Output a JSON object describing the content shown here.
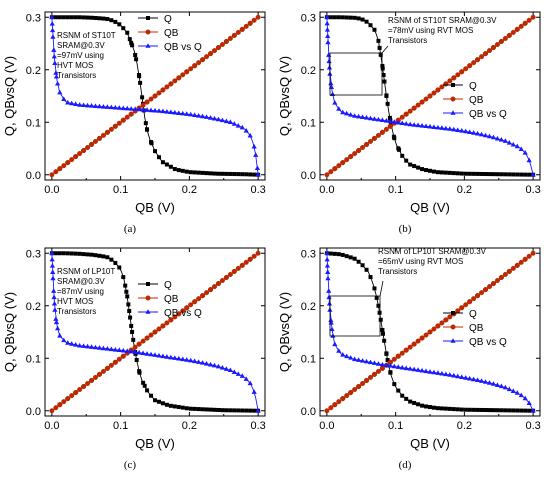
{
  "chart_data": [
    {
      "type": "line",
      "panel_label": "(a)",
      "xlabel": "QB (V)",
      "ylabel": "Q, QBvsQ (V)",
      "xlim": [
        -0.01,
        0.31
      ],
      "ylim": [
        -0.01,
        0.31
      ],
      "xticks": [
        "0.0",
        "0.1",
        "0.2",
        "0.3"
      ],
      "yticks": [
        "0.0",
        "0.1",
        "0.2",
        "0.3"
      ],
      "legend_position": "top-right",
      "annotation": [
        "RSNM of ST10T",
        "SRAM@0.3V",
        "=97mV using",
        "HVT MOS",
        "Transistors"
      ],
      "series": [
        {
          "name": "Q",
          "color": "#000000",
          "marker": "square",
          "x": [
            0.0,
            0.02,
            0.04,
            0.06,
            0.08,
            0.09,
            0.1,
            0.11,
            0.12,
            0.125,
            0.13,
            0.135,
            0.14,
            0.15,
            0.16,
            0.18,
            0.2,
            0.24,
            0.28,
            0.3
          ],
          "y": [
            0.3,
            0.3,
            0.3,
            0.299,
            0.297,
            0.293,
            0.285,
            0.27,
            0.235,
            0.205,
            0.16,
            0.11,
            0.075,
            0.045,
            0.025,
            0.01,
            0.005,
            0.002,
            0.001,
            0.0
          ]
        },
        {
          "name": "QB",
          "color": "#cc2200",
          "marker": "circle",
          "x": [
            0.0,
            0.3
          ],
          "y": [
            0.0,
            0.3
          ]
        },
        {
          "name": "QB vs Q",
          "color": "#1a1aff",
          "marker": "triangle",
          "x": [
            0.0,
            0.002,
            0.005,
            0.01,
            0.02,
            0.04,
            0.06,
            0.08,
            0.1,
            0.12,
            0.14,
            0.16,
            0.18,
            0.2,
            0.22,
            0.24,
            0.26,
            0.28,
            0.29,
            0.295,
            0.298,
            0.3
          ],
          "y": [
            0.3,
            0.25,
            0.2,
            0.16,
            0.138,
            0.133,
            0.131,
            0.129,
            0.127,
            0.125,
            0.123,
            0.121,
            0.118,
            0.115,
            0.111,
            0.106,
            0.1,
            0.088,
            0.072,
            0.05,
            0.025,
            0.0
          ]
        }
      ]
    },
    {
      "type": "line",
      "panel_label": "(b)",
      "xlabel": "QB (V)",
      "ylabel": "Q, QBvsQ (V)",
      "xlim": [
        -0.01,
        0.31
      ],
      "ylim": [
        -0.01,
        0.31
      ],
      "xticks": [
        "0.0",
        "0.1",
        "0.2",
        "0.3"
      ],
      "yticks": [
        "0.0",
        "0.1",
        "0.2",
        "0.3"
      ],
      "legend_position": "center-right",
      "annotation": [
        "RSNM of ST10T SRAM@0.3V",
        "=78mV using RVT MOS",
        "Transistors"
      ],
      "series": [
        {
          "name": "Q",
          "color": "#000000",
          "marker": "square",
          "x": [
            0.0,
            0.02,
            0.04,
            0.05,
            0.06,
            0.07,
            0.075,
            0.08,
            0.085,
            0.09,
            0.095,
            0.1,
            0.11,
            0.12,
            0.14,
            0.16,
            0.2,
            0.25,
            0.3
          ],
          "y": [
            0.3,
            0.3,
            0.299,
            0.297,
            0.29,
            0.275,
            0.255,
            0.215,
            0.165,
            0.12,
            0.085,
            0.06,
            0.035,
            0.02,
            0.01,
            0.005,
            0.002,
            0.001,
            0.0
          ]
        },
        {
          "name": "QB",
          "color": "#cc2200",
          "marker": "circle",
          "x": [
            0.0,
            0.3
          ],
          "y": [
            0.0,
            0.3
          ]
        },
        {
          "name": "QB vs Q",
          "color": "#1a1aff",
          "marker": "triangle",
          "x": [
            0.0,
            0.002,
            0.005,
            0.01,
            0.02,
            0.04,
            0.06,
            0.08,
            0.1,
            0.12,
            0.14,
            0.16,
            0.18,
            0.2,
            0.22,
            0.24,
            0.26,
            0.28,
            0.29,
            0.295,
            0.298,
            0.3
          ],
          "y": [
            0.3,
            0.24,
            0.18,
            0.14,
            0.12,
            0.112,
            0.108,
            0.104,
            0.1,
            0.096,
            0.093,
            0.09,
            0.087,
            0.083,
            0.078,
            0.072,
            0.064,
            0.052,
            0.04,
            0.025,
            0.012,
            0.0
          ]
        }
      ]
    },
    {
      "type": "line",
      "panel_label": "(c)",
      "xlabel": "QB (V)",
      "ylabel": "Q, QBvsQ (V)",
      "xlim": [
        -0.01,
        0.31
      ],
      "ylim": [
        -0.01,
        0.31
      ],
      "xticks": [
        "0.0",
        "0.1",
        "0.2",
        "0.3"
      ],
      "yticks": [
        "0.0",
        "0.1",
        "0.2",
        "0.3"
      ],
      "legend_position": "top-right",
      "annotation": [
        "RSNM of LP10T",
        "SRAM@0.3V",
        "=87mV using",
        "HVT MOS",
        "Transistors"
      ],
      "series": [
        {
          "name": "Q",
          "color": "#000000",
          "marker": "square",
          "x": [
            0.0,
            0.02,
            0.04,
            0.06,
            0.08,
            0.09,
            0.1,
            0.105,
            0.11,
            0.115,
            0.12,
            0.125,
            0.13,
            0.14,
            0.15,
            0.17,
            0.2,
            0.25,
            0.3
          ],
          "y": [
            0.3,
            0.3,
            0.299,
            0.297,
            0.293,
            0.285,
            0.27,
            0.25,
            0.215,
            0.165,
            0.12,
            0.085,
            0.06,
            0.035,
            0.02,
            0.01,
            0.004,
            0.001,
            0.0
          ]
        },
        {
          "name": "QB",
          "color": "#cc2200",
          "marker": "circle",
          "x": [
            0.0,
            0.3
          ],
          "y": [
            0.0,
            0.3
          ]
        },
        {
          "name": "QB vs Q",
          "color": "#1a1aff",
          "marker": "triangle",
          "x": [
            0.0,
            0.002,
            0.005,
            0.01,
            0.02,
            0.04,
            0.06,
            0.08,
            0.1,
            0.12,
            0.14,
            0.16,
            0.18,
            0.2,
            0.22,
            0.24,
            0.26,
            0.28,
            0.29,
            0.295,
            0.298,
            0.3
          ],
          "y": [
            0.3,
            0.24,
            0.18,
            0.145,
            0.13,
            0.124,
            0.121,
            0.118,
            0.115,
            0.112,
            0.108,
            0.104,
            0.1,
            0.096,
            0.091,
            0.085,
            0.077,
            0.064,
            0.05,
            0.033,
            0.016,
            0.0
          ]
        }
      ]
    },
    {
      "type": "line",
      "panel_label": "(d)",
      "xlabel": "QB (V)",
      "ylabel": "Q, QBvsQ (V)",
      "xlim": [
        -0.01,
        0.31
      ],
      "ylim": [
        -0.01,
        0.31
      ],
      "xticks": [
        "0.0",
        "0.1",
        "0.2",
        "0.3"
      ],
      "yticks": [
        "0.0",
        "0.1",
        "0.2",
        "0.3"
      ],
      "legend_position": "center-right",
      "annotation": [
        "RSNM of LP10T SRAM@0.3V",
        "=65mV using RVT MOS",
        "Transistors"
      ],
      "series": [
        {
          "name": "Q",
          "color": "#000000",
          "marker": "square",
          "x": [
            0.0,
            0.02,
            0.04,
            0.05,
            0.06,
            0.065,
            0.07,
            0.075,
            0.08,
            0.085,
            0.09,
            0.095,
            0.1,
            0.11,
            0.12,
            0.14,
            0.16,
            0.2,
            0.25,
            0.3
          ],
          "y": [
            0.3,
            0.298,
            0.29,
            0.28,
            0.265,
            0.25,
            0.23,
            0.2,
            0.16,
            0.12,
            0.085,
            0.06,
            0.045,
            0.028,
            0.018,
            0.009,
            0.005,
            0.002,
            0.001,
            0.0
          ]
        },
        {
          "name": "QB",
          "color": "#cc2200",
          "marker": "circle",
          "x": [
            0.0,
            0.3
          ],
          "y": [
            0.0,
            0.3
          ]
        },
        {
          "name": "QB vs Q",
          "color": "#1a1aff",
          "marker": "triangle",
          "x": [
            0.0,
            0.002,
            0.005,
            0.01,
            0.02,
            0.04,
            0.06,
            0.08,
            0.1,
            0.12,
            0.14,
            0.16,
            0.18,
            0.2,
            0.22,
            0.24,
            0.26,
            0.28,
            0.29,
            0.295,
            0.298,
            0.3
          ],
          "y": [
            0.3,
            0.24,
            0.18,
            0.13,
            0.108,
            0.098,
            0.093,
            0.088,
            0.084,
            0.08,
            0.076,
            0.072,
            0.068,
            0.063,
            0.058,
            0.052,
            0.044,
            0.032,
            0.022,
            0.013,
            0.006,
            0.0
          ]
        }
      ]
    }
  ]
}
